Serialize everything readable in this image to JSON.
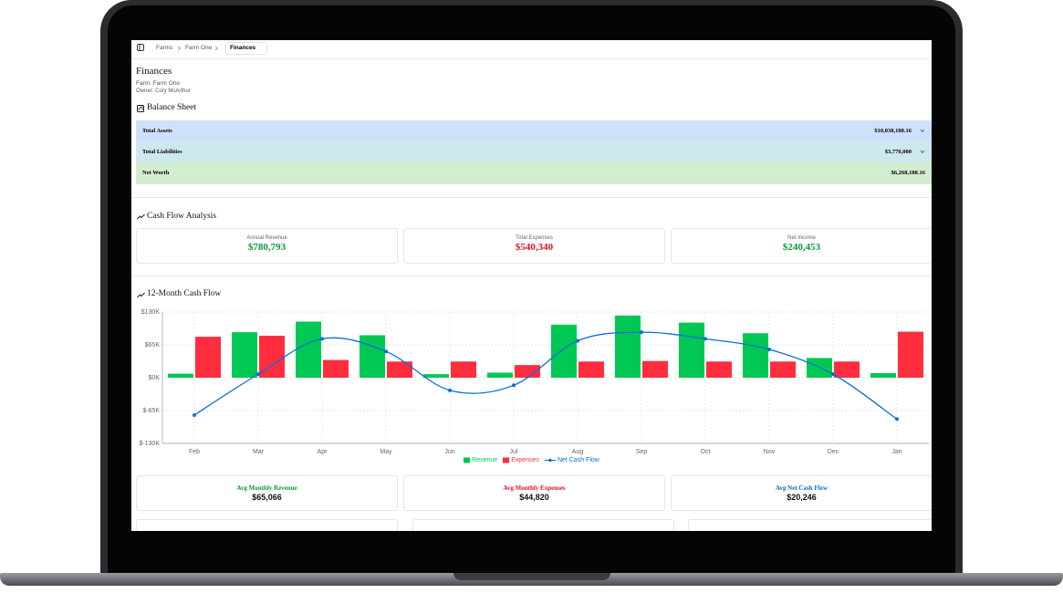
{
  "breadcrumb": [
    "Farms",
    "Farm One",
    "Finances"
  ],
  "header": {
    "title": "Finances",
    "farm": "Farm: Farm One",
    "owner": "Owner: Cory McArthur"
  },
  "balance_sheet": {
    "title": "Balance Sheet",
    "rows": [
      {
        "label": "Total Assets",
        "value": "$10,038,188.16"
      },
      {
        "label": "Total Liabilities",
        "value": "$3,770,000"
      },
      {
        "label": "Net Worth",
        "value": "$6,268,188.16"
      }
    ]
  },
  "cash_flow": {
    "title": "Cash Flow Analysis",
    "cards": [
      {
        "label": "Annual Revenue",
        "value": "$780,793",
        "color": "#0b9b3a"
      },
      {
        "label": "Total Expenses",
        "value": "$540,340",
        "color": "#e0112b"
      },
      {
        "label": "Net Income",
        "value": "$240,453",
        "color": "#0b9b3a"
      }
    ]
  },
  "chart_data": {
    "type": "bar",
    "title": "12-Month Cash Flow",
    "categories": [
      "Feb",
      "Mar",
      "Apr",
      "May",
      "Jun",
      "Jul",
      "Aug",
      "Sep",
      "Oct",
      "Nov",
      "Dec",
      "Jan"
    ],
    "ylim": [
      -130000,
      130000
    ],
    "yticks": [
      {
        "value": -130000,
        "label": "$-130K"
      },
      {
        "value": -65000,
        "label": "$-65K"
      },
      {
        "value": 0,
        "label": "$0K"
      },
      {
        "value": 65000,
        "label": "$65K"
      },
      {
        "value": 130000,
        "label": "$130K"
      }
    ],
    "grid": true,
    "series": [
      {
        "name": "Revenue",
        "type": "bar",
        "color": "#00c853",
        "values": [
          8000,
          90000,
          111000,
          84000,
          7000,
          10000,
          105000,
          123000,
          109000,
          88000,
          39000,
          9000
        ]
      },
      {
        "name": "Expenses",
        "type": "bar",
        "color": "#ff2d3d",
        "values": [
          81000,
          83000,
          35000,
          32000,
          32000,
          25000,
          32000,
          33000,
          32000,
          32000,
          32000,
          91000
        ]
      },
      {
        "name": "Net Cash Flow",
        "type": "line",
        "color": "#0a6fd8",
        "values": [
          -74000,
          7000,
          77000,
          52000,
          -25000,
          -15000,
          73000,
          90000,
          77000,
          56000,
          7000,
          -82000
        ]
      }
    ]
  },
  "summary": [
    {
      "label": "Avg Monthly Revenue",
      "value": "$65,066",
      "color": "#0b9b3a"
    },
    {
      "label": "Avg Monthly Expenses",
      "value": "$44,820",
      "color": "#e0112b"
    },
    {
      "label": "Avg Net Cash Flow",
      "value": "$20,246",
      "color": "#0a6fd8"
    }
  ]
}
